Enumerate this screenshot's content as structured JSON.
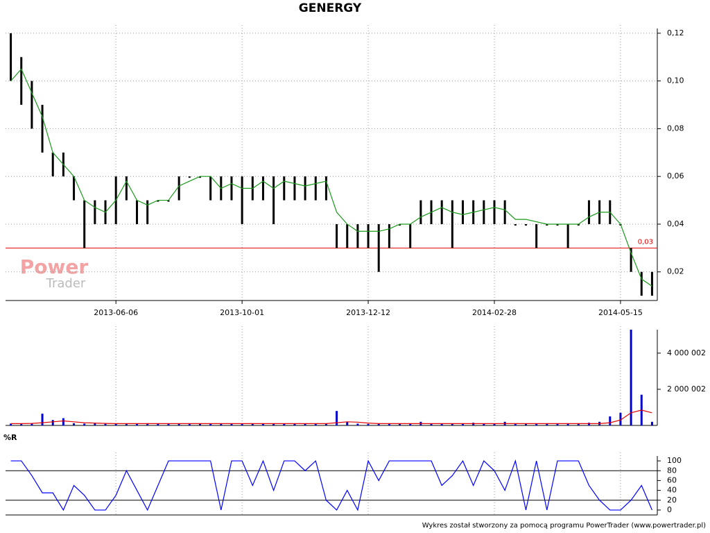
{
  "chart_data": [
    {
      "type": "range",
      "title": "GENERGY",
      "categories": [
        null,
        null,
        null,
        null,
        null,
        null,
        null,
        null,
        null,
        null,
        "2013-06-06",
        null,
        null,
        null,
        null,
        null,
        null,
        null,
        null,
        null,
        null,
        null,
        "2013-10-01",
        null,
        null,
        null,
        null,
        null,
        null,
        null,
        null,
        null,
        null,
        null,
        "2013-12-12",
        null,
        null,
        null,
        null,
        null,
        null,
        null,
        null,
        null,
        null,
        null,
        "2014-02-28",
        null,
        null,
        null,
        null,
        null,
        null,
        null,
        null,
        null,
        null,
        null,
        "2014-05-15",
        null,
        null,
        null
      ],
      "high": [
        0.12,
        0.11,
        0.1,
        0.09,
        0.07,
        0.07,
        0.06,
        0.05,
        0.05,
        0.05,
        0.06,
        0.06,
        0.05,
        0.05,
        0.05,
        0.05,
        0.06,
        0.06,
        0.06,
        0.06,
        0.06,
        0.06,
        0.06,
        0.06,
        0.06,
        0.06,
        0.06,
        0.06,
        0.06,
        0.06,
        0.06,
        0.04,
        0.04,
        0.04,
        0.04,
        0.04,
        0.04,
        0.04,
        0.04,
        0.05,
        0.05,
        0.05,
        0.05,
        0.05,
        0.05,
        0.05,
        0.05,
        0.05,
        0.04,
        0.04,
        0.04,
        0.04,
        0.04,
        0.04,
        0.04,
        0.05,
        0.05,
        0.05,
        0.04,
        0.03,
        0.02,
        0.02
      ],
      "low": [
        0.1,
        0.09,
        0.08,
        0.07,
        0.06,
        0.06,
        0.05,
        0.03,
        0.04,
        0.04,
        0.04,
        0.05,
        0.04,
        0.04,
        0.05,
        0.05,
        0.05,
        0.06,
        0.06,
        0.05,
        0.05,
        0.05,
        0.04,
        0.05,
        0.05,
        0.04,
        0.05,
        0.05,
        0.05,
        0.05,
        0.05,
        0.03,
        0.03,
        0.03,
        0.03,
        0.02,
        0.03,
        0.04,
        0.03,
        0.04,
        0.04,
        0.04,
        0.03,
        0.04,
        0.04,
        0.04,
        0.04,
        0.04,
        0.04,
        0.04,
        0.03,
        0.04,
        0.04,
        0.03,
        0.04,
        0.04,
        0.04,
        0.04,
        0.04,
        0.02,
        0.01,
        0.01
      ],
      "color": "#000000",
      "ma": {
        "color": "#1a9a1a",
        "values": [
          0.1,
          0.105,
          0.095,
          0.085,
          0.07,
          0.065,
          0.06,
          0.05,
          0.047,
          0.045,
          0.05,
          0.058,
          0.05,
          0.048,
          0.05,
          0.05,
          0.056,
          0.058,
          0.06,
          0.06,
          0.055,
          0.057,
          0.055,
          0.055,
          0.058,
          0.055,
          0.058,
          0.057,
          0.056,
          0.057,
          0.058,
          0.045,
          0.04,
          0.037,
          0.037,
          0.037,
          0.038,
          0.04,
          0.04,
          0.043,
          0.045,
          0.047,
          0.045,
          0.044,
          0.045,
          0.046,
          0.047,
          0.046,
          0.042,
          0.042,
          0.041,
          0.04,
          0.04,
          0.04,
          0.04,
          0.043,
          0.045,
          0.045,
          0.04,
          0.028,
          0.017,
          0.014
        ]
      },
      "reference_line": {
        "value": 0.03,
        "label": "0,03",
        "color": "#e00000"
      },
      "ylim": [
        0.008,
        0.122
      ],
      "yticks": [
        {
          "value": 0.02,
          "label": "0,02"
        },
        {
          "value": 0.04,
          "label": "0,04"
        },
        {
          "value": 0.06,
          "label": "0,06"
        },
        {
          "value": 0.08,
          "label": "0,08"
        },
        {
          "value": 0.1,
          "label": "0,10"
        },
        {
          "value": 0.12,
          "label": "0,12"
        }
      ],
      "grid": true
    },
    {
      "type": "bar",
      "values": [
        100000,
        90000,
        120000,
        650000,
        300000,
        400000,
        120000,
        100000,
        110000,
        90000,
        100000,
        80000,
        90000,
        100000,
        80000,
        90000,
        100000,
        80000,
        90000,
        80000,
        100000,
        90000,
        80000,
        90000,
        100000,
        80000,
        90000,
        100000,
        90000,
        80000,
        100000,
        800000,
        200000,
        100000,
        80000,
        90000,
        80000,
        100000,
        90000,
        200000,
        100000,
        90000,
        100000,
        80000,
        150000,
        100000,
        90000,
        200000,
        100000,
        80000,
        90000,
        100000,
        80000,
        90000,
        80000,
        150000,
        200000,
        500000,
        700000,
        5300000,
        1700000,
        200000
      ],
      "color": "#0000cc",
      "ma": {
        "color": "#e00000",
        "values": [
          100000,
          100000,
          110000,
          150000,
          200000,
          250000,
          200000,
          150000,
          130000,
          110000,
          100000,
          100000,
          100000,
          100000,
          100000,
          100000,
          100000,
          100000,
          100000,
          100000,
          100000,
          100000,
          100000,
          100000,
          100000,
          100000,
          100000,
          100000,
          100000,
          100000,
          100000,
          150000,
          200000,
          180000,
          130000,
          100000,
          100000,
          100000,
          100000,
          100000,
          100000,
          100000,
          100000,
          100000,
          100000,
          100000,
          100000,
          100000,
          100000,
          100000,
          100000,
          100000,
          100000,
          100000,
          100000,
          100000,
          100000,
          150000,
          300000,
          700000,
          850000,
          700000
        ]
      },
      "ylim": [
        0,
        5300000
      ],
      "yticks": [
        {
          "value": 2000002,
          "label": "2 000 002"
        },
        {
          "value": 4000002,
          "label": "4 000 002"
        }
      ],
      "grid": true
    },
    {
      "type": "line",
      "title": "%R",
      "values": [
        100,
        100,
        70,
        35,
        35,
        0,
        50,
        30,
        0,
        0,
        30,
        80,
        40,
        0,
        50,
        100,
        100,
        100,
        100,
        100,
        0,
        100,
        100,
        50,
        100,
        40,
        100,
        100,
        80,
        100,
        20,
        0,
        40,
        0,
        100,
        60,
        100,
        100,
        100,
        100,
        100,
        50,
        70,
        100,
        50,
        100,
        80,
        40,
        100,
        0,
        100,
        0,
        100,
        100,
        100,
        50,
        20,
        0,
        0,
        20,
        50,
        0
      ],
      "color": "#0000ff",
      "levels": [
        20,
        80
      ],
      "ylim": [
        -10,
        110
      ],
      "yticks": [
        0,
        20,
        40,
        60,
        80,
        100
      ],
      "grid": true
    }
  ],
  "watermark": [
    "Power",
    "Trader"
  ],
  "footer": "Wykres został stworzony za pomocą programu PowerTrader (www.powertrader.pl)"
}
